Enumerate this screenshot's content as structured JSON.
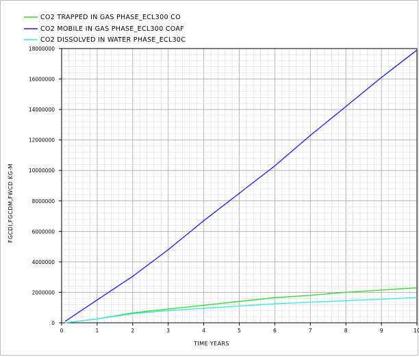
{
  "chart_data": {
    "type": "line",
    "xlabel": "TIME  YEARS",
    "ylabel": "FGCDI,FGCDM,FWCD  KG-M",
    "xlim": [
      0,
      10
    ],
    "ylim": [
      0,
      18000000
    ],
    "x_ticks": [
      "0",
      "1",
      "2",
      "3",
      "4",
      "5",
      "6",
      "7",
      "8",
      "9",
      "10"
    ],
    "y_ticks": [
      "0",
      "2000000",
      "4000000",
      "6000000",
      "8000000",
      "10000000",
      "12000000",
      "14000000",
      "16000000",
      "18000000"
    ],
    "grid": true,
    "legend_position": "top-left",
    "series": [
      {
        "name": "CO2 TRAPPED IN GAS PHASE_ECL300 CO",
        "color": "#22dd22",
        "x": [
          0.1,
          1,
          2,
          3,
          4,
          5,
          6,
          7,
          8,
          9,
          10
        ],
        "values": [
          0,
          250000,
          650000,
          900000,
          1150000,
          1400000,
          1650000,
          1800000,
          2000000,
          2150000,
          2300000
        ]
      },
      {
        "name": "CO2 MOBILE IN GAS PHASE_ECL300 COAF",
        "color": "#1a1ae6",
        "x": [
          0.1,
          1,
          2,
          3,
          4,
          5,
          6,
          7,
          8,
          9,
          10
        ],
        "values": [
          100000,
          1500000,
          3050000,
          4800000,
          6700000,
          8500000,
          10300000,
          12300000,
          14200000,
          16100000,
          17900000
        ]
      },
      {
        "name": "CO2 DISSOLVED IN WATER PHASE_ECL30C",
        "color": "#33e6e6",
        "x": [
          0.1,
          1,
          2,
          3,
          4,
          5,
          6,
          7,
          8,
          9,
          10
        ],
        "values": [
          0,
          250000,
          600000,
          800000,
          950000,
          1100000,
          1250000,
          1350000,
          1450000,
          1550000,
          1650000
        ]
      }
    ]
  }
}
